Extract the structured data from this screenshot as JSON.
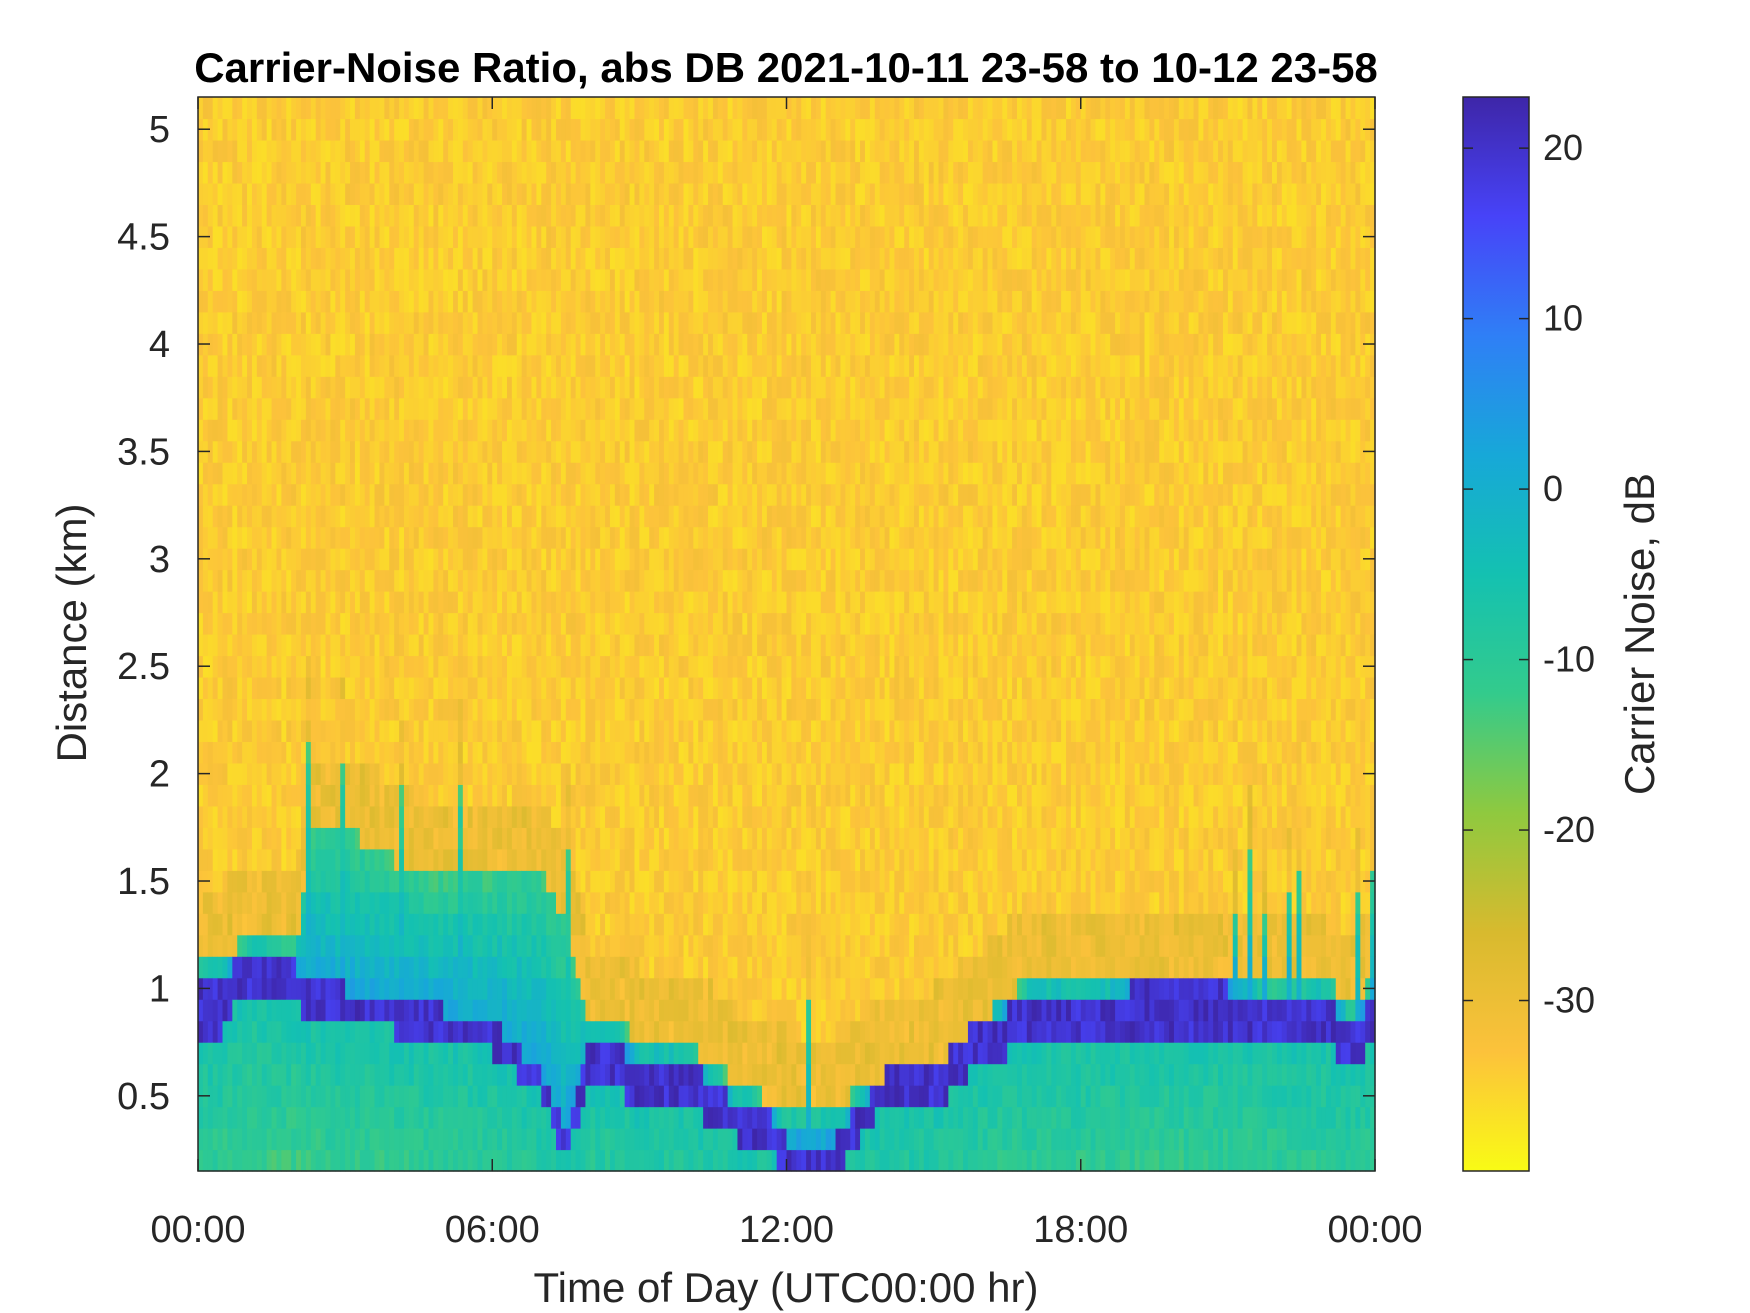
{
  "chart_data": {
    "type": "heatmap",
    "title": "Carrier-Noise Ratio, abs DB 2021-10-11 23-58 to 10-12 23-58",
    "xlabel": "Time of Day (UTC00:00 hr)",
    "ylabel": "Distance (km)",
    "colorbar_label": "Carrier Noise, dB",
    "xlim_hours": [
      0,
      24
    ],
    "ylim_km": [
      0.15,
      5.15
    ],
    "clim_db": [
      -40,
      23
    ],
    "x_ticks": [
      {
        "value": 0,
        "label": "00:00"
      },
      {
        "value": 6,
        "label": "06:00"
      },
      {
        "value": 12,
        "label": "12:00"
      },
      {
        "value": 18,
        "label": "18:00"
      },
      {
        "value": 24,
        "label": "00:00"
      }
    ],
    "y_ticks": [
      {
        "value": 0.5,
        "label": "0.5"
      },
      {
        "value": 1,
        "label": "1"
      },
      {
        "value": 1.5,
        "label": "1.5"
      },
      {
        "value": 2,
        "label": "2"
      },
      {
        "value": 2.5,
        "label": "2.5"
      },
      {
        "value": 3,
        "label": "3"
      },
      {
        "value": 3.5,
        "label": "3.5"
      },
      {
        "value": 4,
        "label": "4"
      },
      {
        "value": 4.5,
        "label": "4.5"
      },
      {
        "value": 5,
        "label": "5"
      }
    ],
    "colorbar_ticks": [
      {
        "value": 20,
        "label": "20"
      },
      {
        "value": 10,
        "label": "10"
      },
      {
        "value": 0,
        "label": "0"
      },
      {
        "value": -10,
        "label": "-10"
      },
      {
        "value": -20,
        "label": "-20"
      },
      {
        "value": -30,
        "label": "-30"
      }
    ],
    "colormap": "parula",
    "colormap_stops": [
      "#3e26a8",
      "#4743f8",
      "#2f7ff6",
      "#17a8d8",
      "#14c1b1",
      "#33cb8c",
      "#8fc93f",
      "#d8ba2e",
      "#fcc23b",
      "#f9fb15"
    ],
    "background_level_db": -34,
    "profile": {
      "hours": [
        0,
        0.5,
        0.8,
        1.2,
        2.0,
        2.3,
        3.0,
        4.0,
        5.0,
        6.0,
        7.0,
        7.5,
        8.0,
        8.5,
        9.0,
        10.0,
        11.0,
        11.5,
        12.0,
        13.0,
        14.0,
        15.0,
        16.0,
        17.0,
        18.0,
        19.0,
        20.0,
        21.0,
        22.0,
        23.0,
        23.5,
        24.0
      ],
      "signal_top_km": [
        1.15,
        1.15,
        1.2,
        1.25,
        1.2,
        1.75,
        1.75,
        1.6,
        1.5,
        1.55,
        1.55,
        1.3,
        0.85,
        0.85,
        0.75,
        0.75,
        0.55,
        0.5,
        0.45,
        0.45,
        0.6,
        0.65,
        0.85,
        1.05,
        1.05,
        1.0,
        1.0,
        1.05,
        1.0,
        1.05,
        0.9,
        1.05
      ],
      "strong_band_low_km": [
        0.8,
        0.8,
        0.95,
        0.95,
        0.95,
        0.85,
        0.85,
        0.8,
        0.75,
        0.7,
        0.5,
        0.2,
        0.55,
        0.55,
        0.45,
        0.45,
        0.3,
        0.3,
        0.15,
        0.15,
        0.45,
        0.45,
        0.65,
        0.75,
        0.75,
        0.8,
        0.8,
        0.8,
        0.75,
        0.75,
        0.6,
        0.8
      ],
      "strong_band_high_km": [
        1.0,
        1.0,
        1.15,
        1.15,
        1.1,
        1.0,
        1.0,
        0.95,
        0.9,
        0.85,
        0.6,
        0.35,
        0.75,
        0.75,
        0.65,
        0.65,
        0.45,
        0.45,
        0.3,
        0.3,
        0.6,
        0.65,
        0.85,
        0.95,
        0.95,
        1.0,
        1.0,
        1.0,
        0.95,
        0.95,
        0.85,
        0.95
      ]
    }
  }
}
